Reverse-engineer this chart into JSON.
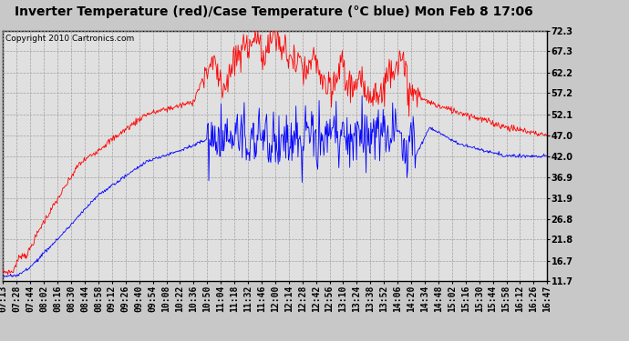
{
  "title": "Inverter Temperature (red)/Case Temperature (°C blue) Mon Feb 8 17:06",
  "copyright": "Copyright 2010 Cartronics.com",
  "yticks": [
    11.7,
    16.7,
    21.8,
    26.8,
    31.9,
    36.9,
    42.0,
    47.0,
    52.1,
    57.2,
    62.2,
    67.3,
    72.3
  ],
  "xtick_labels": [
    "07:13",
    "07:28",
    "07:44",
    "08:02",
    "08:16",
    "08:30",
    "08:44",
    "08:58",
    "09:12",
    "09:26",
    "09:40",
    "09:54",
    "10:08",
    "10:22",
    "10:36",
    "10:50",
    "11:04",
    "11:18",
    "11:32",
    "11:46",
    "12:00",
    "12:14",
    "12:28",
    "12:42",
    "12:56",
    "13:10",
    "13:24",
    "13:38",
    "13:52",
    "14:06",
    "14:20",
    "14:34",
    "14:48",
    "15:02",
    "15:16",
    "15:30",
    "15:44",
    "15:58",
    "16:12",
    "16:26",
    "16:47"
  ],
  "ymin": 11.7,
  "ymax": 72.3,
  "bg_color": "#c8c8c8",
  "plot_bg_color": "#e0e0e0",
  "grid_color": "#b0b0b0",
  "red_color": "#ff0000",
  "blue_color": "#0000ff",
  "title_fontsize": 10,
  "copyright_fontsize": 6.5,
  "tick_fontsize": 7
}
